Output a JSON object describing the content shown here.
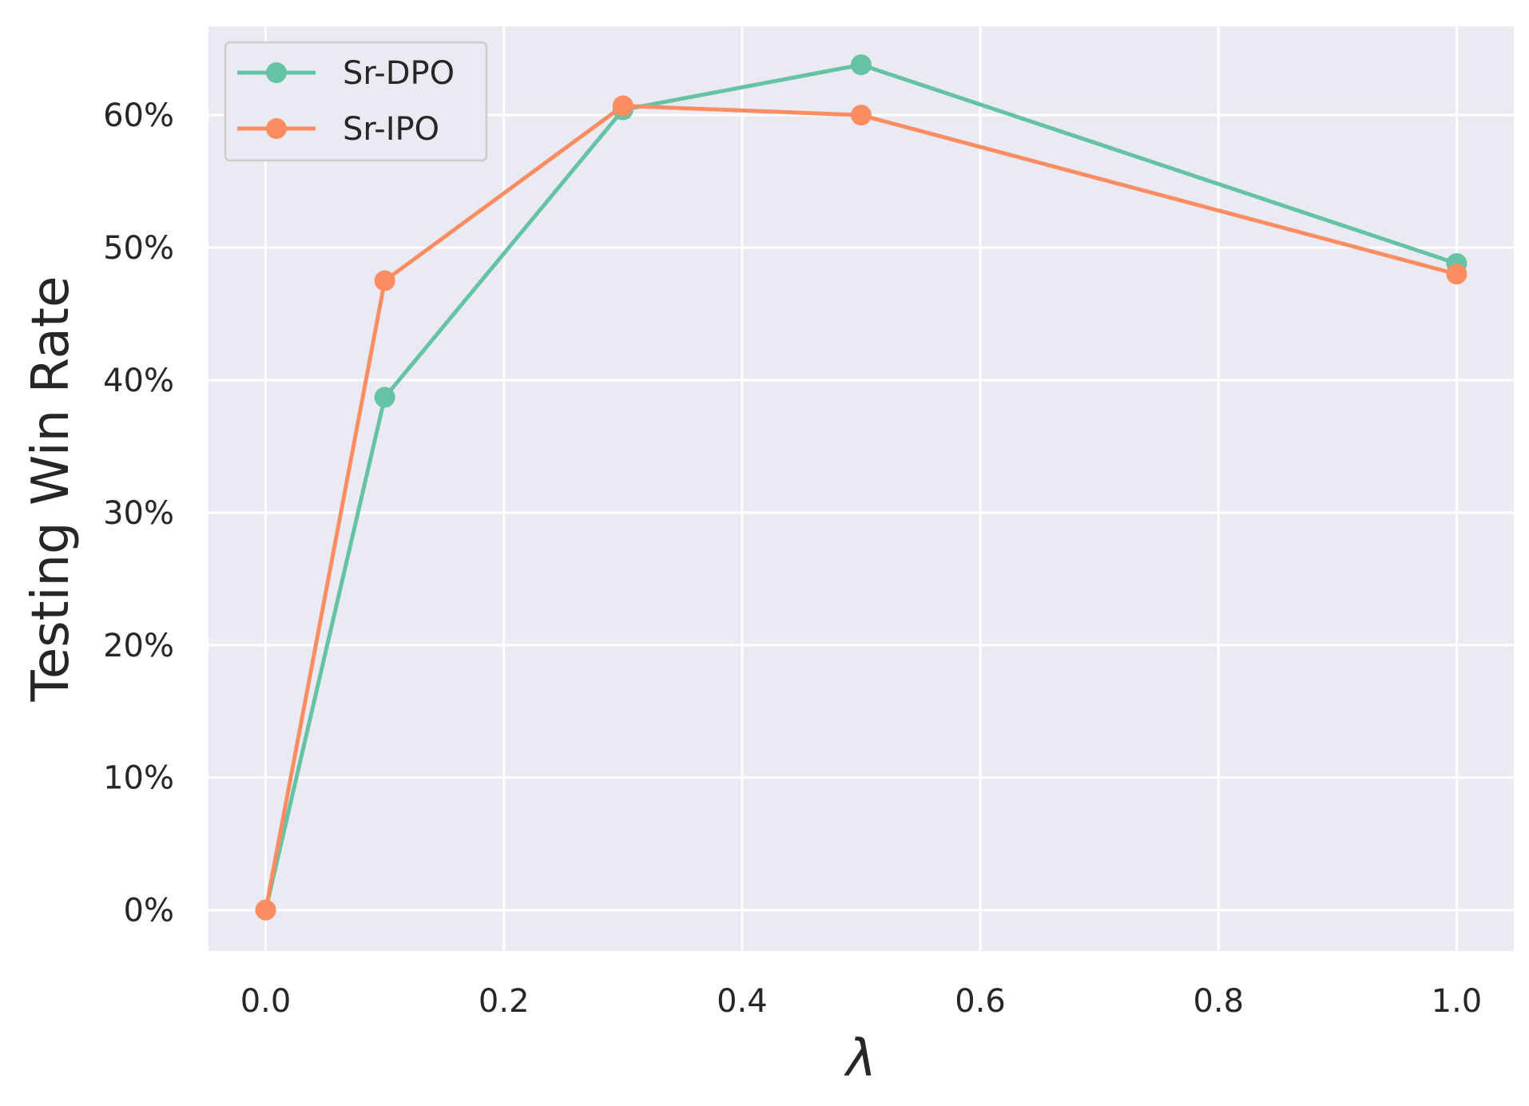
{
  "chart_data": {
    "type": "line",
    "xlabel": "λ",
    "ylabel": "Testing Win Rate",
    "xlim": [
      -0.048,
      1.048
    ],
    "ylim": [
      -3.1,
      66.7
    ],
    "xticks": [
      0.0,
      0.2,
      0.4,
      0.6,
      0.8,
      1.0
    ],
    "xtick_labels": [
      "0.0",
      "0.2",
      "0.4",
      "0.6",
      "0.8",
      "1.0"
    ],
    "yticks": [
      0,
      10,
      20,
      30,
      40,
      50,
      60
    ],
    "ytick_labels": [
      "0%",
      "10%",
      "20%",
      "30%",
      "40%",
      "50%",
      "60%"
    ],
    "grid": true,
    "legend_position": "top-left",
    "x": [
      0.0,
      0.1,
      0.3,
      0.5,
      1.0
    ],
    "series": [
      {
        "name": "Sr-DPO",
        "color": "#66c2a5",
        "values": [
          0.0,
          38.7,
          60.4,
          63.8,
          48.8
        ]
      },
      {
        "name": "Sr-IPO",
        "color": "#fc8d62",
        "values": [
          0.0,
          47.5,
          60.7,
          60.0,
          48.0
        ]
      }
    ]
  }
}
